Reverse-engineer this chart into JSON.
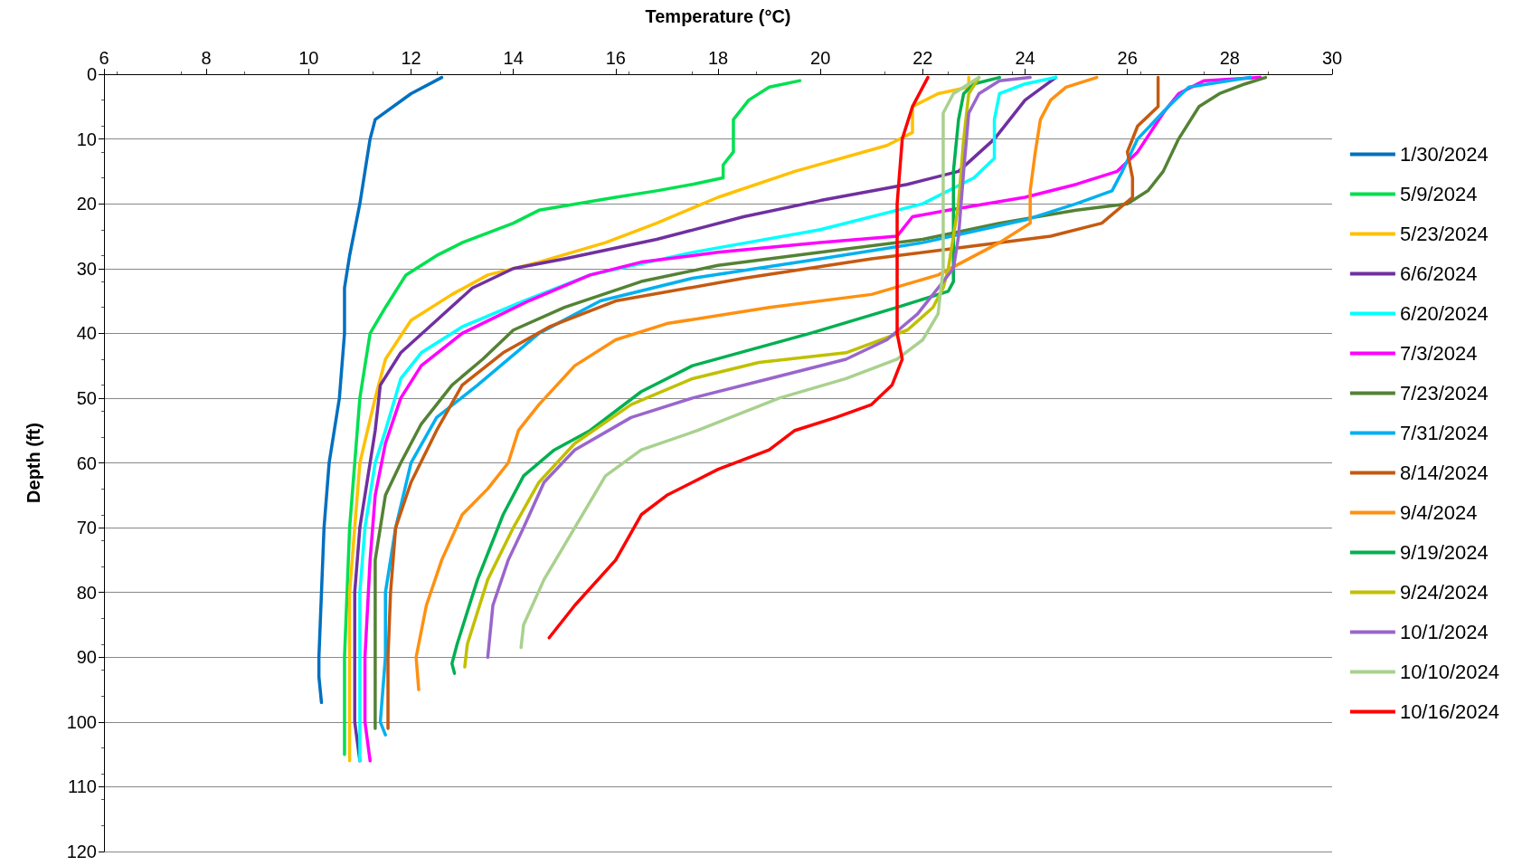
{
  "chart_data": {
    "type": "line",
    "xlabel": "Temperature (°C)",
    "ylabel": "Depth (ft)",
    "xlim": [
      6,
      30
    ],
    "xticks": [
      6,
      8,
      10,
      12,
      14,
      16,
      18,
      20,
      22,
      24,
      26,
      28,
      30
    ],
    "ylim": [
      120,
      0
    ],
    "yticks": [
      0,
      10,
      20,
      30,
      40,
      50,
      60,
      70,
      80,
      90,
      100,
      110,
      120
    ],
    "grid": "y",
    "legend": "right",
    "marker": "none",
    "line_style": "solid",
    "series": [
      {
        "name": "1/30/2024",
        "color": "#0070c0",
        "x": [
          12.6,
          12.0,
          11.3,
          11.2,
          11.1,
          11.0,
          10.8,
          10.7,
          10.7,
          10.6,
          10.5,
          10.4,
          10.3,
          10.25,
          10.2,
          10.2,
          10.25
        ],
        "values": [
          0.5,
          3,
          7,
          10,
          15,
          20,
          28,
          33,
          40,
          50,
          55,
          60,
          70,
          80,
          90,
          93,
          97
        ]
      },
      {
        "name": "5/9/2024",
        "color": "#00e050",
        "x": [
          19.6,
          19.0,
          18.6,
          18.3,
          18.3,
          18.1,
          18.1,
          17.5,
          16.8,
          16.0,
          14.5,
          14.0,
          13.5,
          13.0,
          12.5,
          11.9,
          11.5,
          11.2,
          11.0,
          10.9,
          10.8,
          10.75,
          10.7,
          10.7,
          10.7
        ],
        "values": [
          1,
          2,
          4,
          7,
          12,
          14,
          16,
          17,
          18,
          19,
          21,
          23,
          24.5,
          26,
          28,
          31,
          36,
          40,
          50,
          60,
          70,
          80,
          90,
          100,
          105
        ]
      },
      {
        "name": "5/23/2024",
        "color": "#ffc000",
        "x": [
          22.9,
          22.9,
          22.3,
          21.8,
          21.8,
          21.3,
          19.5,
          18,
          16.8,
          15.8,
          14.5,
          13.5,
          12.8,
          12,
          11.5,
          11.3,
          11,
          10.9,
          10.8,
          10.8,
          10.8,
          10.8
        ],
        "values": [
          0.5,
          2,
          3,
          5,
          9,
          11,
          15,
          19,
          23,
          26,
          29,
          31,
          34,
          38,
          44,
          50,
          60,
          70,
          80,
          90,
          100,
          106
        ]
      },
      {
        "name": "6/6/2024",
        "color": "#7030a0",
        "x": [
          24.6,
          24,
          23.4,
          22.7,
          21.7,
          20,
          18.5,
          16.8,
          15,
          14,
          13.2,
          12.5,
          11.8,
          11.4,
          11.3,
          11.2,
          11,
          10.9,
          10.9,
          10.9,
          11
        ],
        "values": [
          0.5,
          4,
          10,
          15,
          17,
          19.5,
          22,
          25.5,
          28.5,
          30,
          33,
          38,
          43,
          48,
          55,
          60,
          70,
          80,
          90,
          100,
          106
        ]
      },
      {
        "name": "6/20/2024",
        "color": "#00ffff",
        "x": [
          24.6,
          24,
          23.5,
          23.4,
          23.4,
          23,
          22,
          20,
          17.5,
          15.5,
          14.2,
          13,
          12.2,
          11.8,
          11.5,
          11.3,
          11.1,
          11,
          11,
          11,
          11
        ],
        "values": [
          0.5,
          1.5,
          3,
          7,
          13,
          16,
          20,
          24,
          27.5,
          31,
          35,
          39,
          43,
          47,
          55,
          60,
          70,
          80,
          90,
          100,
          106
        ]
      },
      {
        "name": "7/3/2024",
        "color": "#ff00ff",
        "x": [
          28.6,
          27.5,
          27,
          26.7,
          26.2,
          25.8,
          25,
          24,
          22.5,
          21.8,
          21.5,
          20,
          18,
          16.5,
          15.5,
          14.3,
          13,
          12.2,
          11.8,
          11.5,
          11.3,
          11.2,
          11.1,
          11.1,
          11.2
        ],
        "values": [
          0.5,
          1,
          3,
          6,
          12,
          15,
          17,
          19,
          21,
          22,
          25,
          26,
          27.5,
          29,
          31,
          35,
          40,
          45,
          50,
          57,
          65,
          75,
          90,
          100,
          106
        ]
      },
      {
        "name": "7/23/2024",
        "color": "#548235",
        "x": [
          28.7,
          28.3,
          27.8,
          27.4,
          27,
          26.7,
          26.4,
          26,
          25,
          23.5,
          22,
          20,
          18,
          16.5,
          15,
          14,
          13.4,
          12.8,
          12.2,
          11.8,
          11.5,
          11.3,
          11.3,
          11.3,
          11.3
        ],
        "values": [
          0.5,
          1.5,
          3,
          5,
          10,
          15,
          18,
          20,
          21,
          23,
          25.5,
          27.5,
          29.5,
          32,
          36,
          39.5,
          44,
          48,
          54,
          60,
          65,
          75,
          90,
          100,
          101
        ]
      },
      {
        "name": "7/31/2024",
        "color": "#00b0f0",
        "x": [
          28.4,
          27.2,
          26.8,
          26.2,
          25.9,
          25.7,
          25,
          24,
          22,
          20,
          17.5,
          15.7,
          14.5,
          13.3,
          12.5,
          12,
          11.7,
          11.5,
          11.5,
          11.4,
          11.5
        ],
        "values": [
          0.5,
          2,
          5,
          10,
          15,
          18,
          20,
          22.5,
          26,
          28.5,
          31.5,
          35,
          40,
          48,
          53,
          60,
          70,
          80,
          90,
          100,
          102
        ]
      },
      {
        "name": "8/14/2024",
        "color": "#c55a11",
        "x": [
          26.6,
          26.6,
          26.2,
          26,
          26.1,
          26.1,
          25.5,
          24.5,
          23,
          21,
          18.5,
          16,
          14.7,
          13.8,
          13,
          12.5,
          12.0,
          11.7,
          11.6,
          11.55,
          11.55
        ],
        "values": [
          0.5,
          5,
          8,
          12,
          16,
          19,
          23,
          25,
          26.5,
          28.5,
          31.5,
          35,
          39,
          43,
          48,
          55,
          63,
          70,
          80,
          90,
          101
        ]
      },
      {
        "name": "9/4/2024",
        "color": "#ff9010",
        "x": [
          25.4,
          24.8,
          24.5,
          24.3,
          24.2,
          24.1,
          24.1,
          24.1,
          23.5,
          22.3,
          21,
          19,
          17,
          16,
          15.2,
          14.5,
          14.1,
          13.9,
          13.5,
          13,
          12.6,
          12.3,
          12.1,
          12.15
        ],
        "values": [
          0.5,
          2,
          4,
          7,
          12,
          18,
          21,
          23,
          26,
          31,
          34,
          36,
          38.5,
          41,
          45,
          51,
          55,
          60,
          64,
          68,
          75,
          82,
          90,
          95
        ]
      },
      {
        "name": "9/19/2024",
        "color": "#00b050",
        "x": [
          23.5,
          23,
          22.8,
          22.7,
          22.6,
          22.6,
          22.6,
          22.5,
          21.5,
          19.8,
          17.5,
          16.5,
          15.5,
          14.8,
          14.2,
          13.8,
          13.3,
          12.9,
          12.8,
          12.85
        ],
        "values": [
          0.5,
          1.5,
          3,
          7,
          15,
          25,
          32,
          33.5,
          36,
          40,
          45,
          49,
          55,
          58,
          62,
          68,
          78,
          88,
          91,
          92.5
        ]
      },
      {
        "name": "9/24/2024",
        "color": "#c0c000",
        "x": [
          23.1,
          22.9,
          22.8,
          22.7,
          22.5,
          22.4,
          22.2,
          21.7,
          20.5,
          18.8,
          17.5,
          16.3,
          15.2,
          14.5,
          14,
          13.5,
          13.1,
          13.05
        ],
        "values": [
          0.5,
          3,
          10,
          20,
          30,
          33,
          36,
          39.5,
          43,
          44.5,
          47,
          51,
          57,
          63,
          70,
          78,
          88,
          91.5
        ]
      },
      {
        "name": "10/1/2024",
        "color": "#9966cc",
        "x": [
          24.1,
          23.5,
          23.1,
          22.9,
          22.8,
          22.7,
          22.6,
          22.3,
          21.9,
          21.3,
          20.5,
          19,
          17.5,
          16.3,
          15.2,
          14.6,
          14.2,
          13.9,
          13.6,
          13.5
        ],
        "values": [
          0.5,
          1,
          3,
          6,
          15,
          25,
          30,
          33,
          37,
          41,
          44,
          47,
          50,
          53,
          58,
          63,
          70,
          75,
          82,
          90
        ]
      },
      {
        "name": "10/10/2024",
        "color": "#a9d18e",
        "x": [
          23.1,
          22.6,
          22.4,
          22.4,
          22.4,
          22.3,
          22,
          21.5,
          20.5,
          19.2,
          17.6,
          16.5,
          15.8,
          15.2,
          14.6,
          14.2,
          14.15
        ],
        "values": [
          0.5,
          3,
          6,
          15,
          30,
          37,
          41,
          44,
          47,
          50,
          55,
          58,
          62,
          70,
          78,
          85,
          88.5
        ]
      },
      {
        "name": "10/16/2024",
        "color": "#ff0000",
        "x": [
          22.1,
          22.0,
          21.8,
          21.6,
          21.5,
          21.5,
          21.5,
          21.6,
          21.4,
          21,
          20.3,
          19.5,
          19,
          18,
          17,
          16.5,
          16,
          15.2,
          14.7
        ],
        "values": [
          0.5,
          2,
          5,
          10,
          20,
          30,
          40,
          44,
          48,
          51,
          53,
          55,
          58,
          61,
          65,
          68,
          75,
          82,
          87
        ]
      }
    ]
  }
}
